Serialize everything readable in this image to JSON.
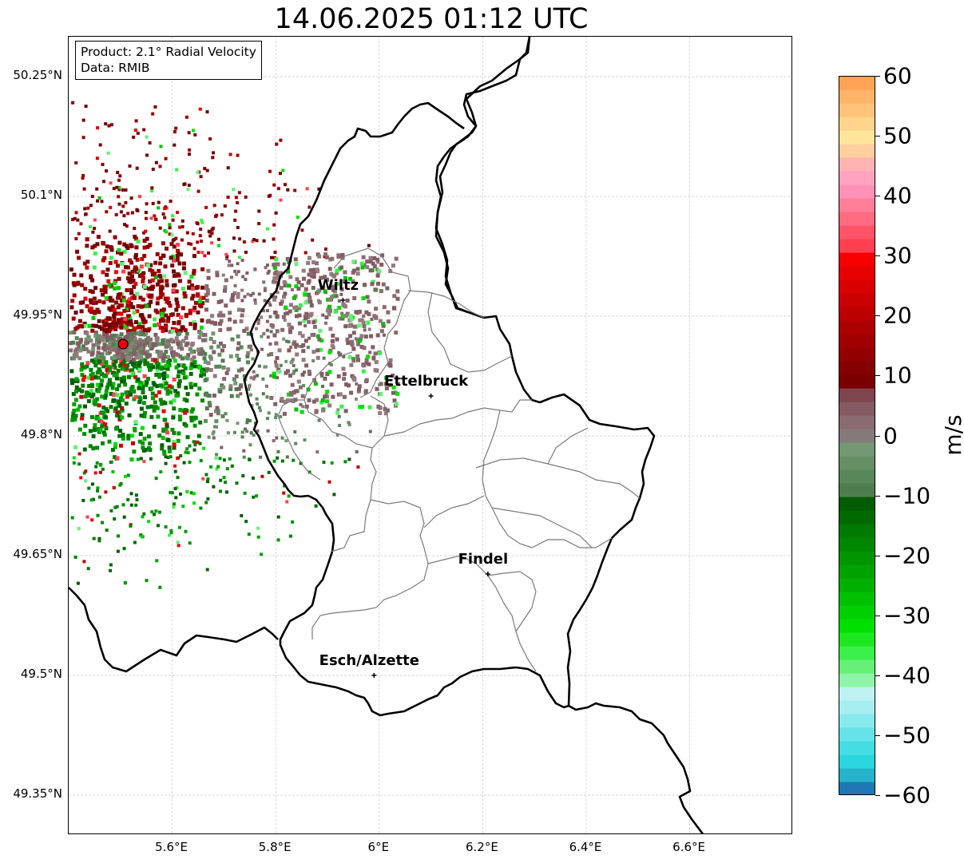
{
  "title": "14.06.2025 01:12 UTC",
  "info": {
    "product": "Product: 2.1° Radial Velocity",
    "data": "Data: RMIB"
  },
  "axes": {
    "lat_labels": [
      "50.25°N",
      "50.1°N",
      "49.95°N",
      "49.8°N",
      "49.65°N",
      "49.5°N",
      "49.35°N"
    ],
    "lat_values": [
      50.25,
      50.1,
      49.95,
      49.8,
      49.65,
      49.5,
      49.35
    ],
    "lon_labels": [
      "5.6°E",
      "5.8°E",
      "6°E",
      "6.2°E",
      "6.4°E",
      "6.6°E"
    ],
    "lon_values": [
      5.6,
      5.8,
      6.0,
      6.2,
      6.4,
      6.6
    ],
    "lon_range": [
      5.4,
      6.8
    ],
    "lat_range": [
      49.3,
      50.3
    ],
    "grid": true
  },
  "cities": [
    {
      "name": "Wiltz",
      "lon": 5.93,
      "lat": 49.97
    },
    {
      "name": "Ettelbruck",
      "lon": 6.1,
      "lat": 49.85
    },
    {
      "name": "Findel",
      "lon": 6.21,
      "lat": 49.627
    },
    {
      "name": "Esch/Alzette",
      "lon": 5.99,
      "lat": 49.5
    }
  ],
  "radar_site": {
    "lon": 5.505,
    "lat": 49.915,
    "color": "#e8000b"
  },
  "colorbar": {
    "unit": "m/s",
    "min": -60,
    "max": 60,
    "ticks": [
      "60",
      "50",
      "40",
      "30",
      "20",
      "10",
      "0",
      "−10",
      "−20",
      "−30",
      "−40",
      "−50",
      "−60"
    ],
    "tick_values": [
      60,
      50,
      40,
      30,
      20,
      10,
      0,
      -10,
      -20,
      -30,
      -40,
      -50,
      -60
    ],
    "colors": [
      "#1f78b4",
      "#26b3c9",
      "#2bd6df",
      "#44dde3",
      "#66e3e8",
      "#88e9ed",
      "#a6eef0",
      "#bff2f3",
      "#8ef5a8",
      "#66f077",
      "#3cf04a",
      "#1de81f",
      "#00e000",
      "#00cf00",
      "#00c000",
      "#00b000",
      "#00a200",
      "#009400",
      "#008700",
      "#007a00",
      "#006a00",
      "#005c00",
      "#4f7c4f",
      "#5a875a",
      "#668f66",
      "#739873",
      "#857a7a",
      "#8a6b70",
      "#855a62",
      "#7f454f",
      "#7a0000",
      "#850000",
      "#920000",
      "#a00000",
      "#ad0000",
      "#bc0000",
      "#cb0000",
      "#da0000",
      "#e80000",
      "#f70000",
      "#ff4050",
      "#ff5468",
      "#ff6b80",
      "#ff7f99",
      "#ff91b8",
      "#ffa3c0",
      "#ffb3b3",
      "#ffcfa0",
      "#ffe49c",
      "#ffd48c",
      "#ffc47a",
      "#ffb468",
      "#ffa456"
    ]
  }
}
